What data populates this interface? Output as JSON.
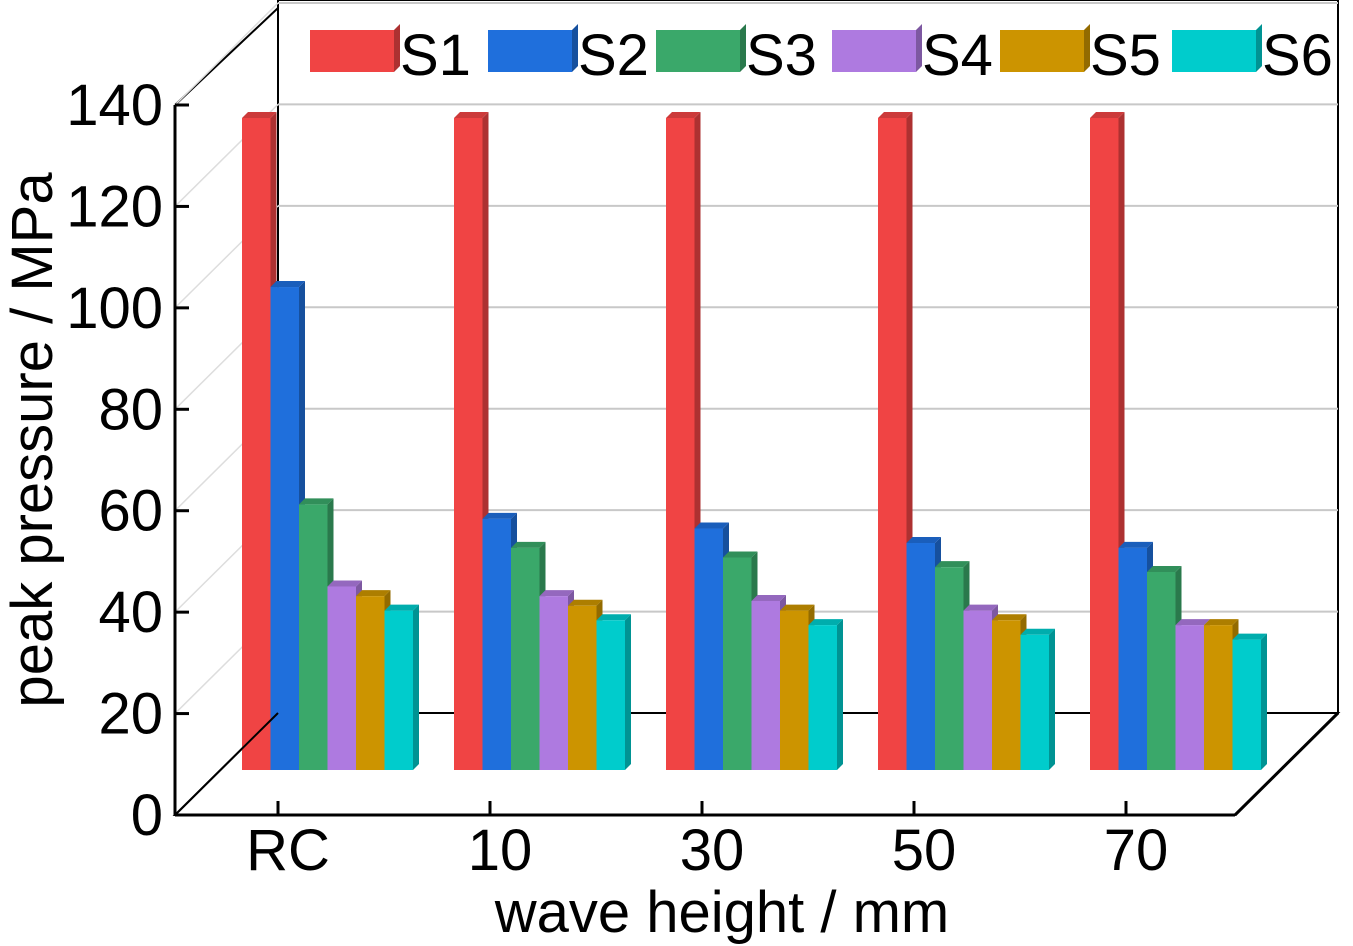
{
  "chart_data": {
    "type": "bar",
    "xlabel": "wave height / mm",
    "ylabel": "peak pressure / MPa",
    "categories": [
      "RC",
      "10",
      "30",
      "50",
      "70"
    ],
    "ylim": [
      0,
      140
    ],
    "yticks": [
      "0",
      "20",
      "40",
      "60",
      "80",
      "100",
      "120",
      "140"
    ],
    "grid": true,
    "legend_position": "top",
    "series": [
      {
        "name": "S1",
        "color": "#f04444",
        "values": [
          135,
          135,
          135,
          135,
          135
        ]
      },
      {
        "name": "S2",
        "color": "#1f6fdc",
        "values": [
          100,
          52,
          50,
          47,
          46
        ]
      },
      {
        "name": "S3",
        "color": "#3aa86a",
        "values": [
          55,
          46,
          44,
          42,
          41
        ]
      },
      {
        "name": "S4",
        "color": "#ae7ae0",
        "values": [
          38,
          36,
          35,
          33,
          30
        ]
      },
      {
        "name": "S5",
        "color": "#cc9400",
        "values": [
          36,
          34,
          33,
          31,
          30
        ]
      },
      {
        "name": "S6",
        "color": "#00cccc",
        "values": [
          33,
          31,
          30,
          28,
          27
        ]
      }
    ]
  }
}
